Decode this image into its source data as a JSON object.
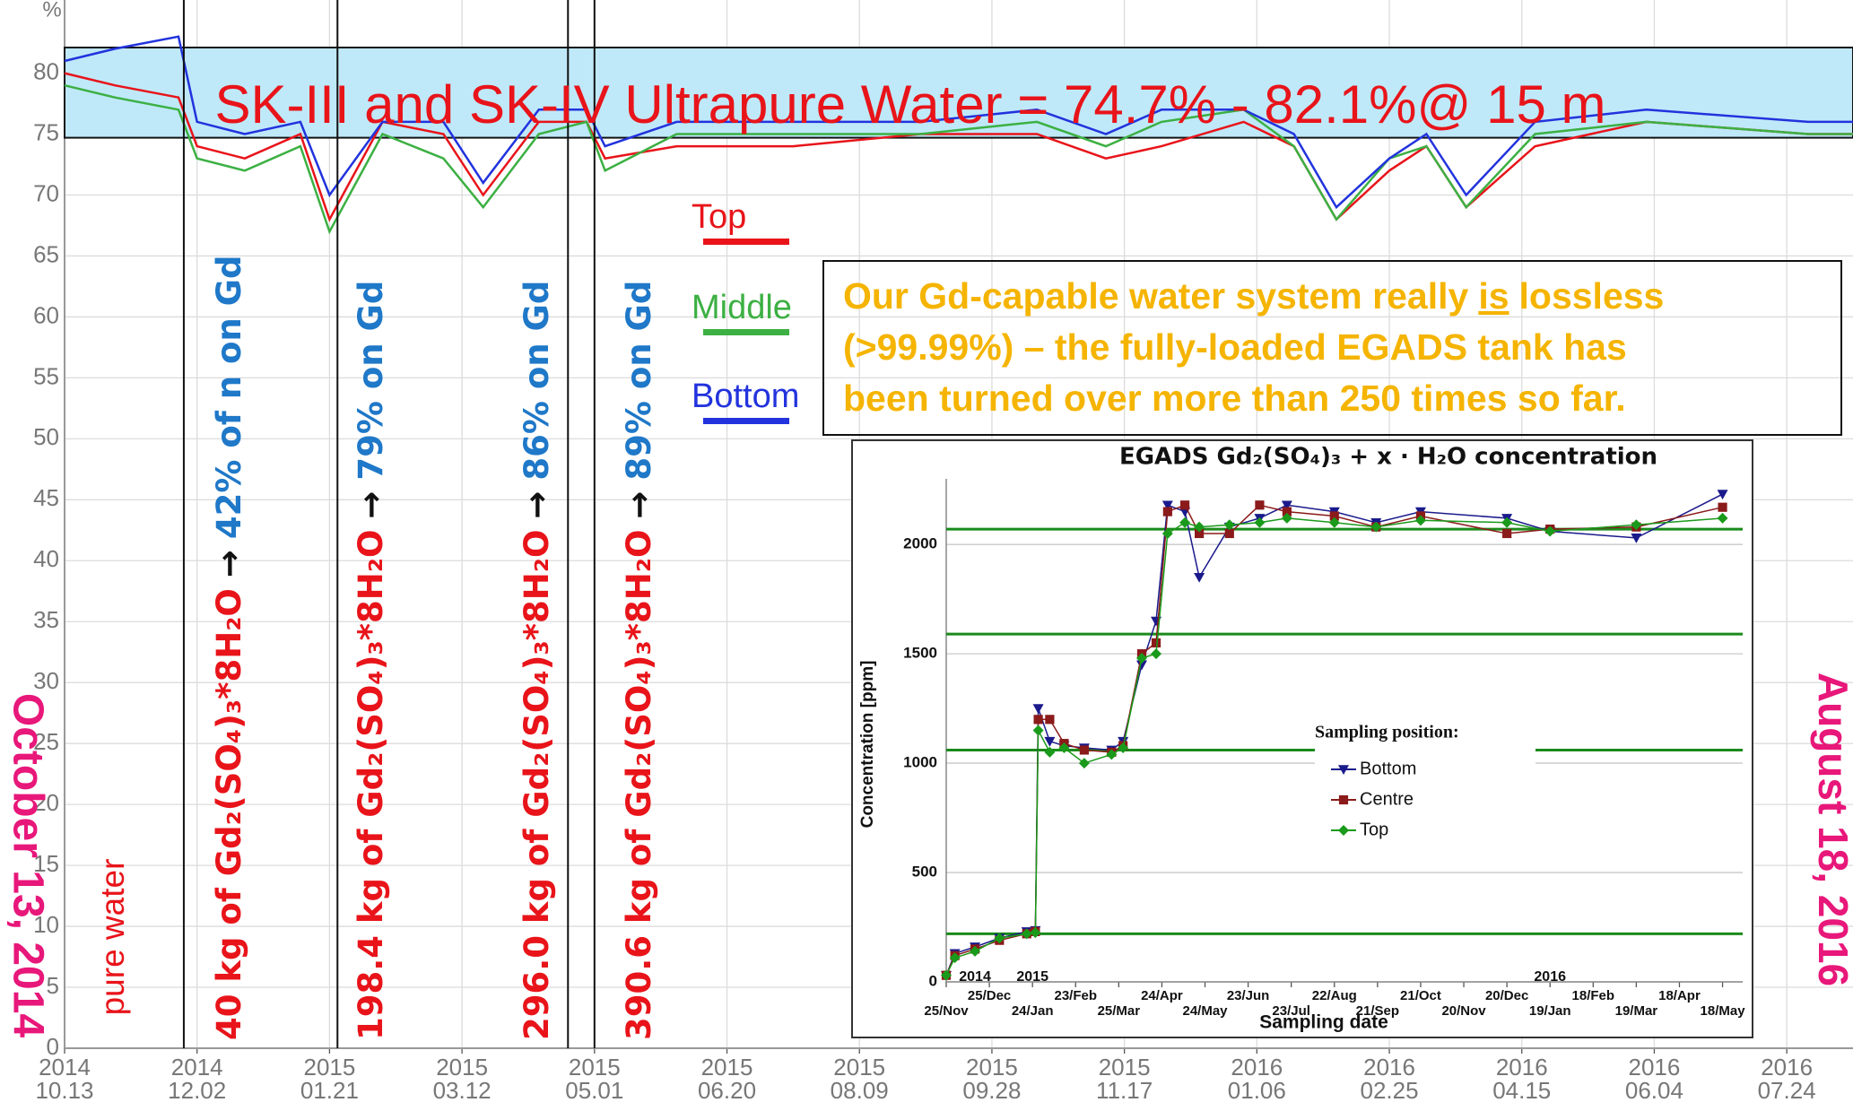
{
  "chart_data": [
    {
      "type": "line",
      "title": "SK-III and SK-IV Ultrapure Water = 74.7% - 82.1%@ 15 m",
      "y_unit": "%",
      "band": [
        74.7,
        82.1
      ],
      "band_color": "#bfe9f9",
      "xlim": [
        "2014-10-13",
        "2016-08-18"
      ],
      "ylim": [
        0,
        86
      ],
      "yticks": [
        0,
        5,
        10,
        15,
        20,
        25,
        30,
        35,
        40,
        45,
        50,
        55,
        60,
        65,
        70,
        75,
        80
      ],
      "xticks": [
        {
          "value": "2014-10-13",
          "label": "2014 10.13"
        },
        {
          "value": "2014-12-02",
          "label": "2014 12.02"
        },
        {
          "value": "2015-01-21",
          "label": "2015 01.21"
        },
        {
          "value": "2015-03-12",
          "label": "2015 03.12"
        },
        {
          "value": "2015-05-01",
          "label": "2015 05.01"
        },
        {
          "value": "2015-06-20",
          "label": "2015 06.20"
        },
        {
          "value": "2015-08-09",
          "label": "2015 08.09"
        },
        {
          "value": "2015-09-28",
          "label": "2015 09.28"
        },
        {
          "value": "2015-11-17",
          "label": "2015 11.17"
        },
        {
          "value": "2016-01-06",
          "label": "2016 01.06"
        },
        {
          "value": "2016-02-25",
          "label": "2016 02.25"
        },
        {
          "value": "2016-04-15",
          "label": "2016 04.15"
        },
        {
          "value": "2016-06-04",
          "label": "2016 06.04"
        },
        {
          "value": "2016-07-24",
          "label": "2016 07.24"
        }
      ],
      "grid": true,
      "x": [
        "2014-10-13",
        "2014-11-01",
        "2014-11-25",
        "2014-12-02",
        "2014-12-20",
        "2015-01-10",
        "2015-01-21",
        "2015-02-10",
        "2015-03-05",
        "2015-03-20",
        "2015-04-10",
        "2015-04-28",
        "2015-05-05",
        "2015-06-01",
        "2015-07-15",
        "2015-09-01",
        "2015-10-15",
        "2015-11-10",
        "2015-12-01",
        "2016-01-01",
        "2016-01-20",
        "2016-02-05",
        "2016-02-25",
        "2016-03-10",
        "2016-03-25",
        "2016-04-20",
        "2016-06-01",
        "2016-08-01",
        "2016-08-18"
      ],
      "series": [
        {
          "name": "Top",
          "color": "#e8141a",
          "values": [
            80,
            79,
            78,
            74,
            73,
            75,
            68,
            76,
            75,
            70,
            76,
            76,
            73,
            74,
            74,
            75,
            75,
            73,
            74,
            76,
            74,
            68,
            72,
            74,
            69,
            74,
            76,
            75,
            75
          ]
        },
        {
          "name": "Middle",
          "color": "#3cb043",
          "values": [
            79,
            78,
            77,
            73,
            72,
            74,
            67,
            75,
            73,
            69,
            75,
            76,
            72,
            75,
            75,
            75,
            76,
            74,
            76,
            77,
            74,
            68,
            73,
            74,
            69,
            75,
            76,
            75,
            75
          ]
        },
        {
          "name": "Bottom",
          "color": "#2233dd",
          "values": [
            81,
            82,
            83,
            76,
            75,
            76,
            70,
            76,
            76,
            71,
            77,
            77,
            74,
            76,
            76,
            76,
            77,
            75,
            77,
            77,
            75,
            69,
            73,
            75,
            70,
            76,
            77,
            76,
            76
          ]
        }
      ],
      "legend_position": "center",
      "events": [
        {
          "date": "2014-11-27",
          "load": "40 kg of Gd₂(SO₄)₃*8H₂O",
          "arrow": "→",
          "result": "42% of n on Gd"
        },
        {
          "date": "2015-01-24",
          "load": "198.4 kg of Gd₂(SO₄)₃*8H₂O",
          "arrow": "→",
          "result": "79% on Gd"
        },
        {
          "date": "2015-04-21",
          "load": "296.0 kg of Gd₂(SO₄)₃*8H₂O",
          "arrow": "→",
          "result": "86% on Gd"
        },
        {
          "date": "2015-05-01",
          "load": "390.6 kg of Gd₂(SO₄)₃*8H₂O",
          "arrow": "→",
          "result": "89% on Gd"
        }
      ],
      "start_note": "October 13, 2014",
      "end_note": "August 18, 2016",
      "pure_water_note": "pure water",
      "box_text": {
        "line1": [
          "Our Gd-capable water system really",
          "is",
          "lossless"
        ],
        "line2": "(>99.99%) – the fully-loaded EGADS tank has",
        "line3": "been turned over more than 250 times so far."
      }
    },
    {
      "type": "line",
      "title": "EGADS Gd₂(SO₄)₃ + x · H₂O concentration",
      "y_label": "Concentration [ppm]",
      "x_label": "Sampling date",
      "xlim": [
        "2014-11-25",
        "2016-06-01"
      ],
      "ylim": [
        0,
        2300
      ],
      "yticks": [
        0,
        500,
        1000,
        1500,
        2000
      ],
      "xticks": [
        {
          "value": "2014-11-25",
          "label": "25/Nov"
        },
        {
          "value": "2014-12-25",
          "label": "25/Dec"
        },
        {
          "value": "2015-01-24",
          "label": "24/Jan"
        },
        {
          "value": "2015-02-23",
          "label": "23/Feb"
        },
        {
          "value": "2015-03-25",
          "label": "25/Mar"
        },
        {
          "value": "2015-04-24",
          "label": "24/Apr"
        },
        {
          "value": "2015-05-24",
          "label": "24/May"
        },
        {
          "value": "2015-06-23",
          "label": "23/Jun"
        },
        {
          "value": "2015-07-23",
          "label": "23/Jul"
        },
        {
          "value": "2015-08-22",
          "label": "22/Aug"
        },
        {
          "value": "2015-09-21",
          "label": "21/Sep"
        },
        {
          "value": "2015-10-21",
          "label": "21/Oct"
        },
        {
          "value": "2015-11-20",
          "label": "20/Nov"
        },
        {
          "value": "2015-12-20",
          "label": "20/Dec"
        },
        {
          "value": "2016-01-19",
          "label": "19/Jan"
        },
        {
          "value": "2016-02-18",
          "label": "18/Feb"
        },
        {
          "value": "2016-03-19",
          "label": "19/Mar"
        },
        {
          "value": "2016-04-18",
          "label": "18/Apr"
        },
        {
          "value": "2016-05-18",
          "label": "18/May"
        }
      ],
      "year_labels": [
        {
          "value": "2014-12-15",
          "label": "2014"
        },
        {
          "value": "2015-01-24",
          "label": "2015"
        },
        {
          "value": "2016-01-19",
          "label": "2016"
        }
      ],
      "grid": true,
      "reference_lines": [
        220,
        1060,
        1590,
        2070
      ],
      "reference_color": "#1a8a1a",
      "legend_title": "Sampling position:",
      "x": [
        "2014-11-25",
        "2014-12-01",
        "2014-12-15",
        "2015-01-01",
        "2015-01-20",
        "2015-01-26",
        "2015-01-28",
        "2015-02-05",
        "2015-02-15",
        "2015-03-01",
        "2015-03-20",
        "2015-03-28",
        "2015-04-10",
        "2015-04-20",
        "2015-04-28",
        "2015-05-10",
        "2015-05-20",
        "2015-06-10",
        "2015-07-01",
        "2015-07-20",
        "2015-08-22",
        "2015-09-20",
        "2015-10-21",
        "2015-12-20",
        "2016-01-19",
        "2016-03-19",
        "2016-05-18"
      ],
      "series": [
        {
          "name": "Bottom",
          "color": "#1a1a8c",
          "marker": "triangle-down",
          "values": [
            30,
            130,
            160,
            200,
            230,
            235,
            1250,
            1100,
            1080,
            1070,
            1060,
            1100,
            1450,
            1650,
            2180,
            2150,
            1850,
            2080,
            2120,
            2180,
            2150,
            2100,
            2150,
            2120,
            2060,
            2030,
            2230
          ]
        },
        {
          "name": "Centre",
          "color": "#8b1a1a",
          "marker": "square",
          "values": [
            30,
            120,
            150,
            190,
            220,
            230,
            1200,
            1200,
            1090,
            1060,
            1050,
            1080,
            1500,
            1550,
            2150,
            2180,
            2050,
            2050,
            2180,
            2150,
            2130,
            2080,
            2130,
            2050,
            2070,
            2080,
            2170
          ]
        },
        {
          "name": "Top",
          "color": "#1a9a1a",
          "marker": "diamond",
          "values": [
            30,
            110,
            140,
            200,
            220,
            225,
            1150,
            1050,
            1070,
            1000,
            1040,
            1070,
            1480,
            1500,
            2050,
            2100,
            2080,
            2090,
            2100,
            2120,
            2100,
            2080,
            2110,
            2100,
            2060,
            2090,
            2120
          ]
        }
      ]
    }
  ]
}
